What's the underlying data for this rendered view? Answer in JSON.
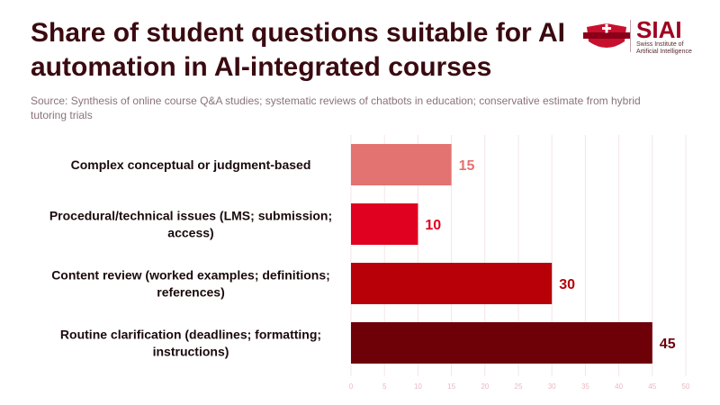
{
  "title": "Share of student questions suitable for AI automation in AI-integrated courses",
  "source": "Source: Synthesis of online course Q&A studies; systematic reviews of chatbots in education; conservative estimate from hybrid tutoring trials",
  "logo": {
    "name": "SIAI",
    "sub_lines": [
      "Swiss Institute of",
      "Artificial Intelligence"
    ]
  },
  "chart_data": {
    "type": "bar",
    "orientation": "horizontal",
    "categories": [
      [
        "Complex conceptual or judgment-based"
      ],
      [
        "Procedural/technical issues (LMS; submission;",
        "access)"
      ],
      [
        "Content review (worked examples; definitions;",
        "references)"
      ],
      [
        "Routine clarification (deadlines; formatting;",
        "instructions)"
      ]
    ],
    "values": [
      15,
      10,
      30,
      45
    ],
    "colors": [
      "#e37370",
      "#e00020",
      "#b80008",
      "#6e0008"
    ],
    "xlim": [
      0,
      50
    ],
    "ticks": [
      0,
      5,
      10,
      15,
      20,
      25,
      30,
      35,
      40,
      45,
      50
    ],
    "grid": true,
    "title": "Share of student questions suitable for AI automation in AI-integrated courses",
    "xlabel": "",
    "ylabel": ""
  }
}
